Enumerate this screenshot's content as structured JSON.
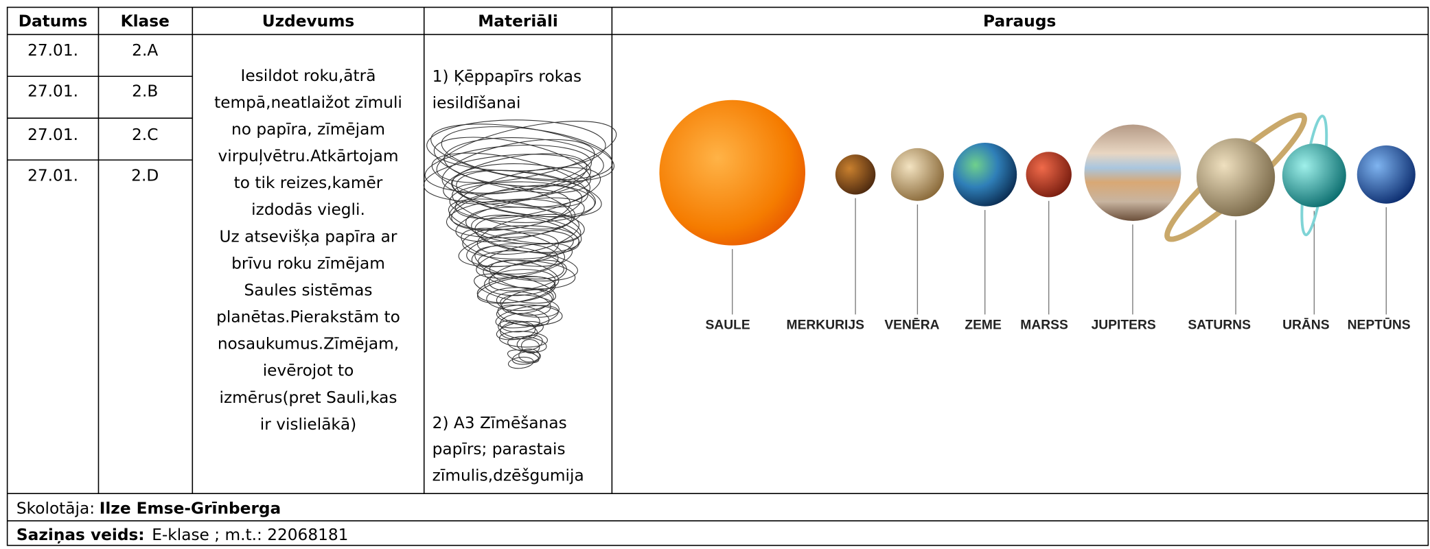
{
  "table": {
    "headers": [
      "Datums",
      "Klase",
      "Uzdevums",
      "Materiāli",
      "Paraugs"
    ],
    "rows": [
      [
        "27.01.",
        "2.A"
      ],
      [
        "27.01.",
        "2.B"
      ],
      [
        "27.01.",
        "2.C"
      ],
      [
        "27.01.",
        "2.D"
      ]
    ],
    "task_lines": [
      "Iesildot roku,ātrā",
      "tempā,neatlaižot zīmuli",
      "no papīra, zīmējam",
      "virpuļvētru.Atkārtojam",
      "to tik reizes,kamēr",
      "izdodās viegli.",
      "Uz atsevišķa papīra ar",
      "brīvu roku zīmējam",
      "Saules sistēmas",
      "planētas.Pierakstām to",
      "nosaukumus.Zīmējam,",
      "ievērojot to",
      "izmērus(pret Sauli,kas",
      "ir vislielākā)"
    ],
    "materials": {
      "item1_lines": [
        "1) Ķēppapīrs rokas",
        " iesildīšanai"
      ],
      "item2_lines": [
        "2) A3 Zīmēšanas",
        "papīrs; parastais",
        "zīmulis,dzēšgumija"
      ]
    },
    "sample_labels": [
      "SAULE",
      "MERKURIJS",
      "VENĒRA",
      "ZEME",
      "MARSS",
      "JUPITERS",
      "SATURNS",
      "URĀNS",
      "NEPTŪNS"
    ]
  },
  "footer": {
    "teacher_label": "Skolotāja:",
    "teacher_name": "Ilze Emse-Grīnberga",
    "contact_label": "Saziņas veids:",
    "contact_value": "E-klase ; m.t.: 22068181"
  }
}
